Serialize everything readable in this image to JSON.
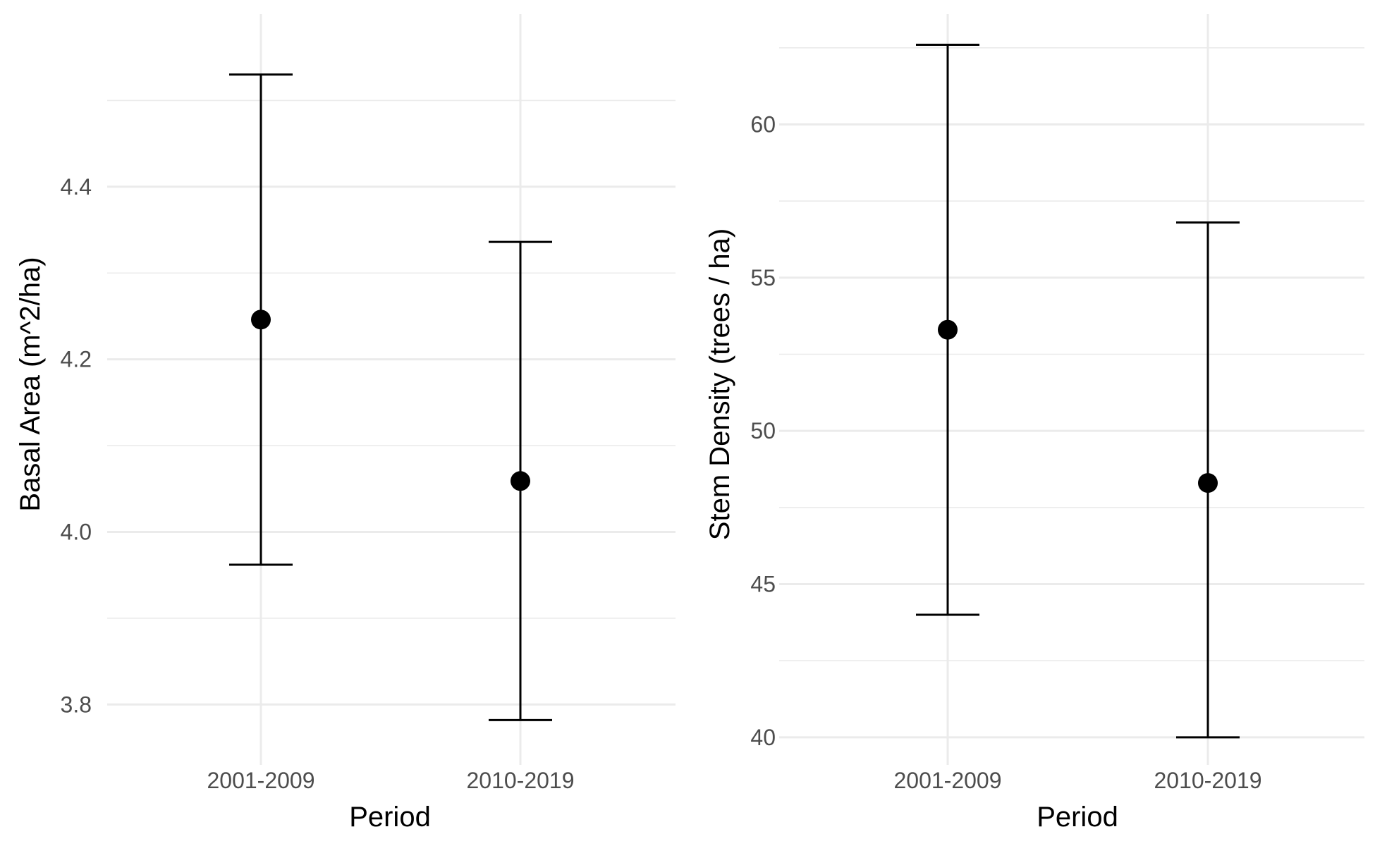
{
  "chart_data": [
    {
      "type": "errorbar",
      "title": "",
      "xlabel": "Period",
      "ylabel": "Basal Area (m^2/ha)",
      "categories": [
        "2001-2009",
        "2010-2019"
      ],
      "points": [
        {
          "category": "2001-2009",
          "mean": 4.246,
          "lower": 3.962,
          "upper": 4.53
        },
        {
          "category": "2010-2019",
          "mean": 4.059,
          "lower": 3.782,
          "upper": 4.336
        }
      ],
      "ylim": [
        3.73,
        4.6
      ],
      "yticks": [
        3.8,
        4.0,
        4.2,
        4.4
      ],
      "ytick_labels": [
        "3.8",
        "4.0",
        "4.2",
        "4.4"
      ],
      "yminor": [
        3.9,
        4.1,
        4.3,
        4.5
      ],
      "grid": true,
      "legend": "none"
    },
    {
      "type": "errorbar",
      "title": "",
      "xlabel": "Period",
      "ylabel": "Stem Density (trees / ha)",
      "categories": [
        "2001-2009",
        "2010-2019"
      ],
      "points": [
        {
          "category": "2001-2009",
          "mean": 53.3,
          "lower": 44.0,
          "upper": 62.6
        },
        {
          "category": "2010-2019",
          "mean": 48.3,
          "lower": 40.0,
          "upper": 56.8
        }
      ],
      "ylim": [
        39.1,
        63.6
      ],
      "yticks": [
        40,
        45,
        50,
        55,
        60
      ],
      "ytick_labels": [
        "40",
        "45",
        "50",
        "55",
        "60"
      ],
      "yminor": [
        42.5,
        47.5,
        52.5,
        57.5,
        62.5
      ],
      "grid": true,
      "legend": "none"
    }
  ]
}
